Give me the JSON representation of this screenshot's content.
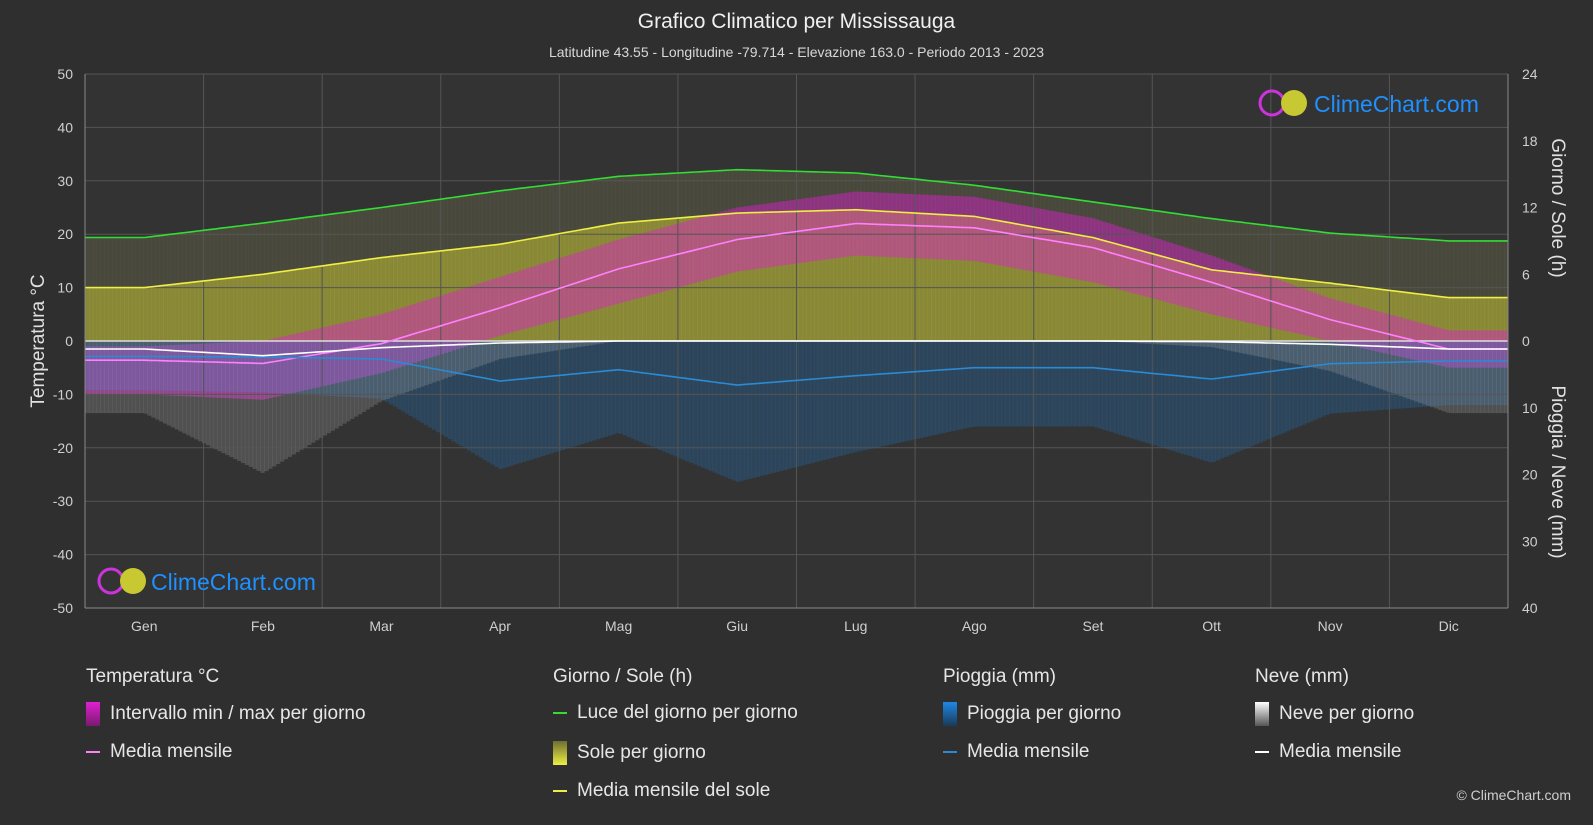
{
  "header": {
    "title": "Grafico Climatico per Mississauga",
    "subtitle": "Latitudine 43.55 - Longitudine -79.714 - Elevazione 163.0 - Periodo 2013 - 2023"
  },
  "watermark": {
    "text": "ClimeChart.com"
  },
  "copyright": "© ClimeChart.com",
  "colors": {
    "background": "#2f2f2f",
    "temp_range": "#e020d0",
    "temp_mean": "#ff80ff",
    "daylight": "#33dd33",
    "sunshine": "#c8c832",
    "sun_mean": "#eeee44",
    "rain": "#1e88e5",
    "rain_mean": "#2a8ad4",
    "snow": "#bbbbbb",
    "snow_mean": "#ffffff",
    "brand": "#1e90ff"
  },
  "legend": {
    "temperature": {
      "title": "Temperatura °C",
      "range": "Intervallo min / max per giorno",
      "mean": "Media mensile"
    },
    "day_sun": {
      "title": "Giorno / Sole (h)",
      "daylight": "Luce del giorno per giorno",
      "sunshine": "Sole per giorno",
      "sun_mean": "Media mensile del sole"
    },
    "rain": {
      "title": "Pioggia (mm)",
      "daily": "Pioggia per giorno",
      "mean": "Media mensile"
    },
    "snow": {
      "title": "Neve (mm)",
      "daily": "Neve per giorno",
      "mean": "Media mensile"
    }
  },
  "chart_data": {
    "type": "line",
    "title": "Grafico Climatico per Mississauga",
    "categories": [
      "Gen",
      "Feb",
      "Mar",
      "Apr",
      "Mag",
      "Giu",
      "Lug",
      "Ago",
      "Set",
      "Ott",
      "Nov",
      "Dic"
    ],
    "y_left": {
      "label": "Temperatura °C",
      "range": [
        -50,
        50
      ],
      "ticks": [
        50,
        40,
        30,
        20,
        10,
        0,
        -10,
        -20,
        -30,
        -40,
        -50
      ]
    },
    "y_right_top": {
      "label": "Giorno / Sole (h)",
      "range": [
        0,
        24
      ],
      "ticks": [
        24,
        18,
        12,
        6,
        0
      ]
    },
    "y_right_bottom": {
      "label": "Pioggia / Neve (mm)",
      "range": [
        0,
        40
      ],
      "ticks": [
        10,
        20,
        30,
        40
      ]
    },
    "grid": true,
    "series": [
      {
        "name": "Luce del giorno per giorno",
        "unit": "h",
        "values": [
          9.3,
          10.6,
          12.0,
          13.5,
          14.8,
          15.4,
          15.1,
          14.0,
          12.5,
          11.0,
          9.7,
          9.0
        ]
      },
      {
        "name": "Media mensile del sole",
        "unit": "h",
        "values": [
          4.8,
          6.0,
          7.5,
          8.7,
          10.6,
          11.5,
          11.8,
          11.2,
          9.3,
          6.4,
          5.2,
          3.9
        ]
      },
      {
        "name": "Media mensile",
        "group": "Temperatura °C",
        "unit": "°C",
        "values": [
          -3.6,
          -4.2,
          -0.5,
          6.2,
          13.5,
          19.0,
          22.0,
          21.2,
          17.5,
          11.0,
          4.0,
          -1.5
        ]
      },
      {
        "name": "Media mensile",
        "group": "Pioggia (mm)",
        "unit": "mm",
        "values": [
          2.3,
          2.4,
          2.7,
          6.0,
          4.3,
          6.6,
          5.2,
          4.0,
          4.0,
          5.7,
          3.4,
          3.0
        ]
      },
      {
        "name": "Media mensile",
        "group": "Neve (mm)",
        "unit": "mm",
        "values": [
          1.2,
          2.2,
          1.0,
          0.3,
          0.0,
          0.0,
          0.0,
          0.0,
          0.0,
          0.1,
          0.5,
          1.2
        ]
      }
    ],
    "daily_temp_range_approx": {
      "min": [
        -10,
        -11,
        -6,
        1,
        7,
        13,
        16,
        15,
        11,
        5,
        0,
        -5
      ],
      "max": [
        -1,
        0,
        5,
        12,
        19,
        25,
        28,
        27,
        23,
        16,
        8,
        2
      ]
    }
  }
}
